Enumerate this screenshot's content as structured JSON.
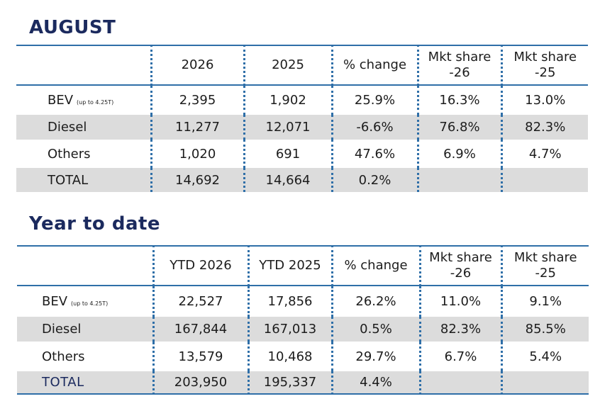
{
  "sections": [
    {
      "title": "AUGUST",
      "headers": [
        "",
        "2026",
        "2025",
        "% change",
        "Mkt share -26",
        "Mkt share -25"
      ],
      "rows": [
        {
          "label": "BEV",
          "sub": "(up to 4.25T)",
          "values": [
            "2,395",
            "1,902",
            "25.9%",
            "16.3%",
            "13.0%"
          ]
        },
        {
          "label": "Diesel",
          "sub": "",
          "values": [
            "11,277",
            "12,071",
            "-6.6%",
            "76.8%",
            "82.3%"
          ]
        },
        {
          "label": "Others",
          "sub": "",
          "values": [
            "1,020",
            "691",
            "47.6%",
            "6.9%",
            "4.7%"
          ]
        },
        {
          "label": "TOTAL",
          "sub": "",
          "values": [
            "14,692",
            "14,664",
            "0.2%",
            "",
            ""
          ]
        }
      ]
    },
    {
      "title": "Year to date",
      "headers": [
        "",
        "YTD 2026",
        "YTD 2025",
        "% change",
        "Mkt share -26",
        "Mkt share -25"
      ],
      "rows": [
        {
          "label": "BEV",
          "sub": "(up to 4.25T)",
          "values": [
            "22,527",
            "17,856",
            "26.2%",
            "11.0%",
            "9.1%"
          ]
        },
        {
          "label": "Diesel",
          "sub": "",
          "values": [
            "167,844",
            "167,013",
            "0.5%",
            "82.3%",
            "85.5%"
          ]
        },
        {
          "label": "Others",
          "sub": "",
          "values": [
            "13,579",
            "10,468",
            "29.7%",
            "6.7%",
            "5.4%"
          ]
        },
        {
          "label": "TOTAL",
          "sub": "",
          "values": [
            "203,950",
            "195,337",
            "4.4%",
            "",
            ""
          ]
        }
      ]
    }
  ]
}
